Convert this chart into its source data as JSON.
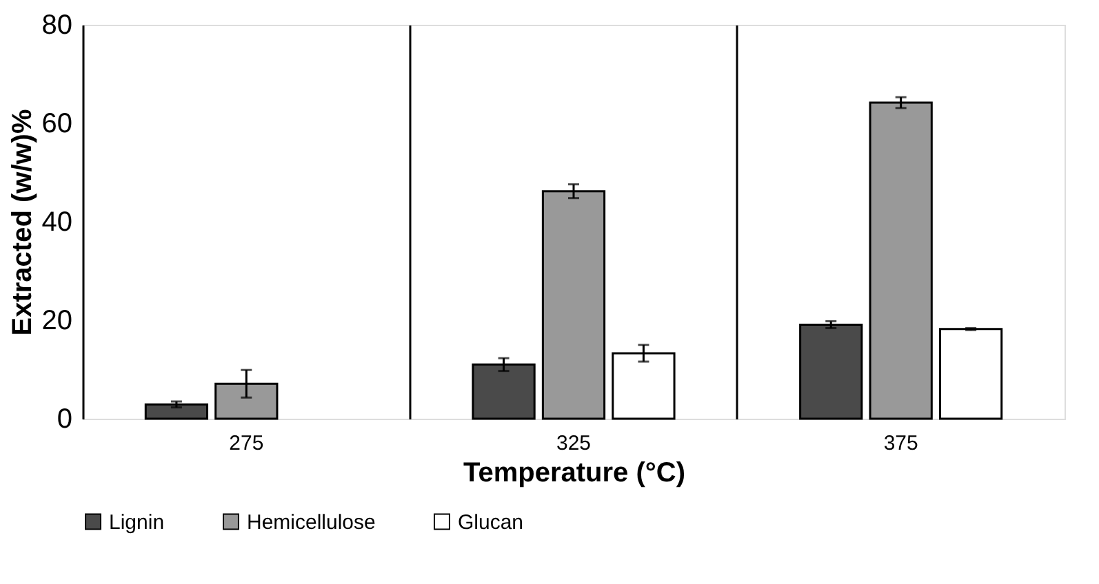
{
  "chart_data": {
    "type": "bar",
    "xlabel": "Temperature (°C)",
    "ylabel": "Extracted (w/w)%",
    "categories": [
      "275",
      "325",
      "375"
    ],
    "series": [
      {
        "name": "Lignin",
        "color": "#4a4a4a",
        "values": [
          2.9,
          11.0,
          19.1
        ],
        "errors": [
          0.6,
          1.3,
          0.7
        ]
      },
      {
        "name": "Hemicellulose",
        "color": "#999999",
        "values": [
          7.1,
          46.2,
          64.2
        ],
        "errors": [
          2.8,
          1.4,
          1.1
        ]
      },
      {
        "name": "Glucan",
        "color": "#ffffff",
        "values": [
          null,
          13.3,
          18.2
        ],
        "errors": [
          null,
          1.7,
          0.2
        ]
      }
    ],
    "ylim": [
      0,
      80
    ],
    "yticks": [
      0,
      20,
      40,
      60,
      80
    ],
    "grid": false,
    "legend": "bottom"
  }
}
